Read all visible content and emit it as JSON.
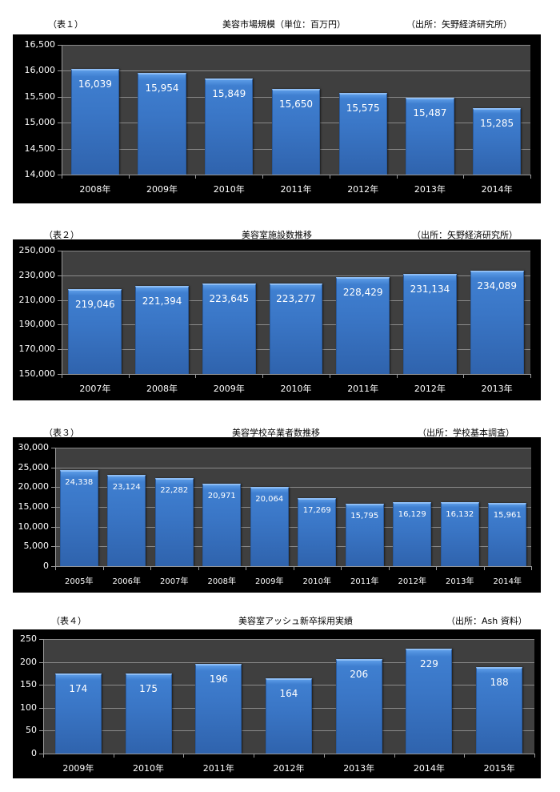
{
  "colors": {
    "chart_background": "#000000",
    "plot_background": "#3f3f3f",
    "gridline": "#8a8a8a",
    "bar": "#3a76c6",
    "bar_highlight": "#8dbdf5",
    "text": "#ffffff"
  },
  "chart_data": [
    {
      "type": "bar",
      "label": "（表１）",
      "title": "美容市場規模（単位：百万円）",
      "source": "（出所：矢野経済研究所）",
      "categories": [
        "2008年",
        "2009年",
        "2010年",
        "2011年",
        "2012年",
        "2013年",
        "2014年"
      ],
      "values": [
        16039,
        15954,
        15849,
        15650,
        15575,
        15487,
        15285
      ],
      "value_labels": [
        "16,039",
        "15,954",
        "15,849",
        "15,650",
        "15,575",
        "15,487",
        "15,285"
      ],
      "xlabel": "",
      "ylabel": "",
      "ylim": [
        14000,
        16500
      ],
      "yticks": [
        "16,500",
        "16,000",
        "15,500",
        "15,000",
        "14,500",
        "14,000"
      ],
      "grid": true,
      "legend": null
    },
    {
      "type": "bar",
      "label": "（表２）",
      "title": "美容室施設数推移",
      "source": "（出所：矢野経済研究所）",
      "categories": [
        "2007年",
        "2008年",
        "2009年",
        "2010年",
        "2011年",
        "2012年",
        "2013年"
      ],
      "values": [
        219046,
        221394,
        223645,
        223277,
        228429,
        231134,
        234089
      ],
      "value_labels": [
        "219,046",
        "221,394",
        "223,645",
        "223,277",
        "228,429",
        "231,134",
        "234,089"
      ],
      "xlabel": "",
      "ylabel": "",
      "ylim": [
        150000,
        250000
      ],
      "yticks": [
        "250,000",
        "230,000",
        "210,000",
        "190,000",
        "170,000",
        "150,000"
      ],
      "grid": true,
      "legend": null
    },
    {
      "type": "bar",
      "label": "（表３）",
      "title": "美容学校卒業者数推移",
      "source": "（出所：学校基本調査）",
      "categories": [
        "2005年",
        "2006年",
        "2007年",
        "2008年",
        "2009年",
        "2010年",
        "2011年",
        "2012年",
        "2013年",
        "2014年"
      ],
      "values": [
        24338,
        23124,
        22282,
        20971,
        20064,
        17269,
        15795,
        16129,
        16132,
        15961
      ],
      "value_labels": [
        "24,338",
        "23,124",
        "22,282",
        "20,971",
        "20,064",
        "17,269",
        "15,795",
        "16,129",
        "16,132",
        "15,961"
      ],
      "xlabel": "",
      "ylabel": "",
      "ylim": [
        0,
        30000
      ],
      "yticks": [
        "30,000",
        "25,000",
        "20,000",
        "15,000",
        "10,000",
        "5,000",
        "0"
      ],
      "grid": true,
      "legend": null
    },
    {
      "type": "bar",
      "label": "（表４）",
      "title": "美容室アッシュ新卒採用実績",
      "source": "（出所：Ash 資料）",
      "categories": [
        "2009年",
        "2010年",
        "2011年",
        "2012年",
        "2013年",
        "2014年",
        "2015年"
      ],
      "values": [
        174,
        175,
        196,
        164,
        206,
        229,
        188
      ],
      "value_labels": [
        "174",
        "175",
        "196",
        "164",
        "206",
        "229",
        "188"
      ],
      "xlabel": "",
      "ylabel": "",
      "ylim": [
        0,
        250
      ],
      "yticks": [
        "250",
        "200",
        "150",
        "100",
        "50",
        "0"
      ],
      "grid": true,
      "legend": null
    }
  ]
}
